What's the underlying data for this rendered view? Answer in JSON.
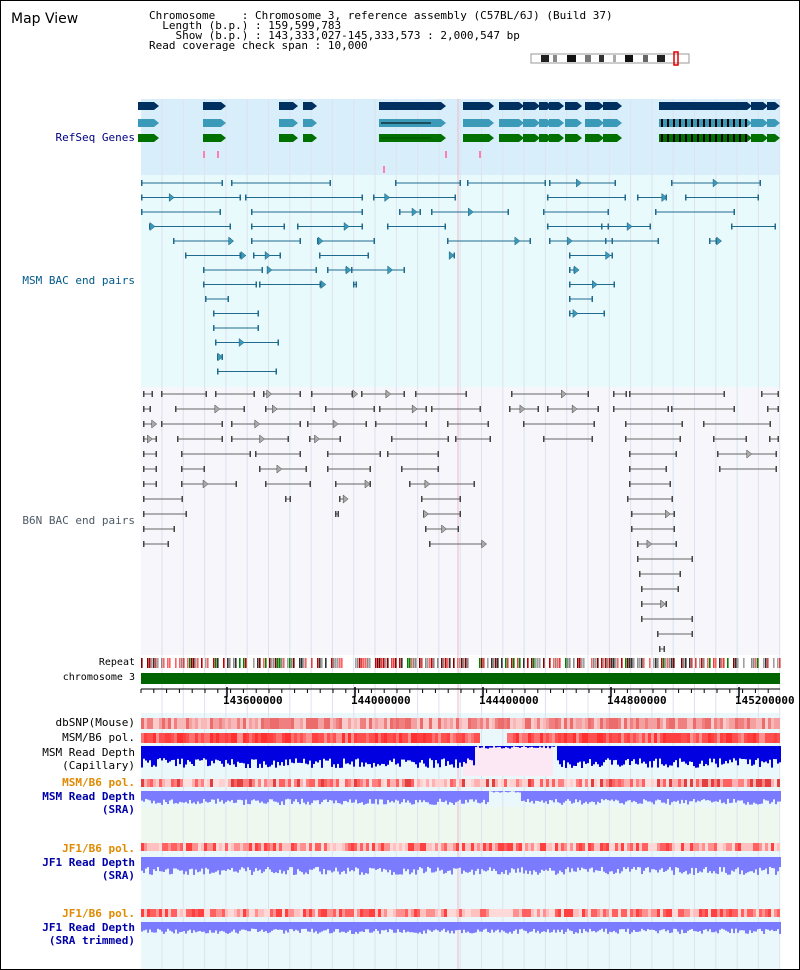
{
  "view": {
    "title": "Map View"
  },
  "info": {
    "chromosome_key": "Chromosome",
    "chromosome_val": "Chromosome 3, reference assembly (C57BL/6J) (Build 37)",
    "length_key": "Length (b.p.)",
    "length_val": "159,599,783",
    "show_key": "Show (b.p.)",
    "show_val": "143,333,027-145,333,573 : 2,000,547 bp",
    "coverage_key": "Read coverage check span",
    "coverage_val": "10,000"
  },
  "tracks": {
    "refseq": "RefSeq Genes",
    "msm_bac": "MSM BAC end pairs",
    "b6n_bac": "B6N BAC end pairs",
    "repeat": "Repeat",
    "chromosome": "chromosome 3",
    "dbsnp": "dbSNP(Mouse)",
    "msm_b6_pol_1": "MSM/B6 pol.",
    "msm_depth_cap_1": "MSM Read Depth",
    "msm_depth_cap_2": "(Capillary)",
    "msm_b6_pol_2": "MSM/B6 pol.",
    "msm_depth_sra_1": "MSM Read Depth",
    "msm_depth_sra_2": "(SRA)",
    "jf1_b6_pol_1": "JF1/B6 pol.",
    "jf1_depth_sra_1": "JF1 Read Depth",
    "jf1_depth_sra_2": "(SRA)",
    "jf1_b6_pol_2": "JF1/B6 pol.",
    "jf1_depth_trim_1": "JF1 Read Depth",
    "jf1_depth_trim_2": "(SRA trimmed)"
  },
  "axis": {
    "ticks": [
      "143600000",
      "144000000",
      "144400000",
      "144800000",
      "145200000"
    ]
  },
  "colors": {
    "gene_navy": "#00305f",
    "gene_blue": "#3a9ab8",
    "gene_green": "#007000",
    "msm_line": "#1f6b8f",
    "b6n_line": "#666666",
    "chrom_bar": "#006400",
    "depth_blue": "#0000e0",
    "depth_light": "#7b7bff"
  }
}
